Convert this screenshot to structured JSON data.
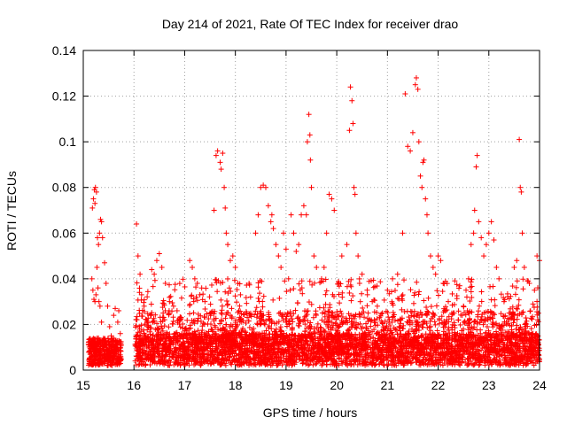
{
  "chart_data": {
    "type": "scatter",
    "title": "Day 214 of 2021, Rate Of TEC Index for receiver drao",
    "xlabel": "GPS time / hours",
    "ylabel": "ROTI / TECUs",
    "xlim": [
      15,
      24
    ],
    "ylim": [
      0,
      0.14
    ],
    "xticks": [
      "15",
      "16",
      "17",
      "18",
      "19",
      "20",
      "21",
      "22",
      "23",
      "24"
    ],
    "yticks": [
      "0",
      "0.02",
      "0.04",
      "0.06",
      "0.08",
      "0.1",
      "0.12",
      "0.14"
    ],
    "grid": true,
    "marker": "+",
    "color": "#ff0000",
    "series": [
      {
        "points": [
          [
            15.18,
            0.071
          ],
          [
            15.2,
            0.075
          ],
          [
            15.22,
            0.079
          ],
          [
            15.24,
            0.08
          ],
          [
            15.26,
            0.078
          ],
          [
            15.23,
            0.073
          ],
          [
            15.28,
            0.058
          ],
          [
            15.3,
            0.055
          ],
          [
            15.32,
            0.06
          ],
          [
            15.34,
            0.066
          ],
          [
            15.36,
            0.065
          ],
          [
            15.38,
            0.058
          ],
          [
            15.42,
            0.047
          ],
          [
            15.17,
            0.04
          ],
          [
            15.19,
            0.035
          ],
          [
            15.21,
            0.031
          ],
          [
            15.23,
            0.03
          ],
          [
            15.25,
            0.033
          ],
          [
            15.27,
            0.045
          ],
          [
            15.29,
            0.036
          ],
          [
            15.31,
            0.03
          ],
          [
            15.33,
            0.028
          ],
          [
            15.36,
            0.021
          ],
          [
            15.45,
            0.038
          ],
          [
            15.48,
            0.028
          ],
          [
            15.52,
            0.019
          ],
          [
            15.55,
            0.015
          ],
          [
            15.6,
            0.024
          ],
          [
            15.63,
            0.027
          ],
          [
            15.68,
            0.021
          ],
          [
            15.7,
            0.026
          ],
          [
            15.73,
            0.016
          ],
          [
            15.2,
            0.012
          ],
          [
            15.3,
            0.014
          ],
          [
            15.4,
            0.011
          ],
          [
            15.5,
            0.012
          ],
          [
            16.05,
            0.064
          ],
          [
            16.08,
            0.05
          ],
          [
            16.12,
            0.042
          ],
          [
            16.15,
            0.033
          ],
          [
            16.2,
            0.028
          ],
          [
            16.25,
            0.022
          ],
          [
            16.35,
            0.044
          ],
          [
            16.4,
            0.042
          ],
          [
            16.45,
            0.048
          ],
          [
            16.5,
            0.051
          ],
          [
            16.55,
            0.045
          ],
          [
            16.62,
            0.038
          ],
          [
            16.7,
            0.03
          ],
          [
            16.78,
            0.028
          ],
          [
            16.85,
            0.026
          ],
          [
            16.92,
            0.022
          ],
          [
            17.0,
            0.018
          ],
          [
            17.1,
            0.048
          ],
          [
            17.15,
            0.045
          ],
          [
            17.2,
            0.04
          ],
          [
            17.25,
            0.038
          ],
          [
            17.3,
            0.033
          ],
          [
            17.4,
            0.03
          ],
          [
            17.5,
            0.025
          ],
          [
            17.58,
            0.07
          ],
          [
            17.62,
            0.094
          ],
          [
            17.65,
            0.096
          ],
          [
            17.7,
            0.091
          ],
          [
            17.72,
            0.088
          ],
          [
            17.75,
            0.095
          ],
          [
            17.78,
            0.08
          ],
          [
            17.8,
            0.071
          ],
          [
            17.82,
            0.06
          ],
          [
            17.85,
            0.055
          ],
          [
            17.9,
            0.048
          ],
          [
            17.95,
            0.05
          ],
          [
            18.0,
            0.045
          ],
          [
            18.05,
            0.038
          ],
          [
            18.1,
            0.033
          ],
          [
            18.3,
            0.032
          ],
          [
            18.4,
            0.06
          ],
          [
            18.45,
            0.068
          ],
          [
            18.5,
            0.08
          ],
          [
            18.55,
            0.081
          ],
          [
            18.6,
            0.08
          ],
          [
            18.65,
            0.072
          ],
          [
            18.7,
            0.065
          ],
          [
            18.72,
            0.068
          ],
          [
            18.75,
            0.062
          ],
          [
            18.8,
            0.055
          ],
          [
            18.85,
            0.05
          ],
          [
            18.9,
            0.045
          ],
          [
            18.95,
            0.06
          ],
          [
            19.0,
            0.053
          ],
          [
            19.05,
            0.04
          ],
          [
            19.1,
            0.068
          ],
          [
            19.15,
            0.06
          ],
          [
            19.2,
            0.052
          ],
          [
            19.25,
            0.055
          ],
          [
            19.3,
            0.068
          ],
          [
            19.35,
            0.072
          ],
          [
            19.4,
            0.068
          ],
          [
            19.42,
            0.1
          ],
          [
            19.45,
            0.112
          ],
          [
            19.47,
            0.103
          ],
          [
            19.48,
            0.092
          ],
          [
            19.5,
            0.08
          ],
          [
            19.55,
            0.05
          ],
          [
            19.6,
            0.045
          ],
          [
            19.7,
            0.04
          ],
          [
            19.75,
            0.045
          ],
          [
            19.8,
            0.06
          ],
          [
            19.85,
            0.077
          ],
          [
            19.9,
            0.075
          ],
          [
            19.95,
            0.07
          ],
          [
            20.1,
            0.05
          ],
          [
            20.2,
            0.055
          ],
          [
            20.25,
            0.105
          ],
          [
            20.27,
            0.124
          ],
          [
            20.3,
            0.118
          ],
          [
            20.32,
            0.108
          ],
          [
            20.34,
            0.08
          ],
          [
            20.36,
            0.077
          ],
          [
            20.38,
            0.06
          ],
          [
            20.42,
            0.05
          ],
          [
            20.45,
            0.038
          ],
          [
            20.5,
            0.042
          ],
          [
            20.6,
            0.035
          ],
          [
            20.7,
            0.03
          ],
          [
            20.8,
            0.028
          ],
          [
            20.9,
            0.025
          ],
          [
            21.0,
            0.035
          ],
          [
            21.1,
            0.04
          ],
          [
            21.2,
            0.042
          ],
          [
            21.3,
            0.06
          ],
          [
            21.35,
            0.121
          ],
          [
            21.4,
            0.098
          ],
          [
            21.45,
            0.096
          ],
          [
            21.5,
            0.104
          ],
          [
            21.55,
            0.125
          ],
          [
            21.57,
            0.128
          ],
          [
            21.6,
            0.123
          ],
          [
            21.62,
            0.1
          ],
          [
            21.65,
            0.085
          ],
          [
            21.68,
            0.08
          ],
          [
            21.7,
            0.091
          ],
          [
            21.72,
            0.092
          ],
          [
            21.75,
            0.075
          ],
          [
            21.78,
            0.068
          ],
          [
            21.8,
            0.06
          ],
          [
            21.85,
            0.05
          ],
          [
            21.9,
            0.045
          ],
          [
            21.95,
            0.042
          ],
          [
            22.0,
            0.05
          ],
          [
            22.05,
            0.048
          ],
          [
            22.1,
            0.038
          ],
          [
            22.2,
            0.03
          ],
          [
            22.3,
            0.025
          ],
          [
            22.4,
            0.022
          ],
          [
            22.5,
            0.028
          ],
          [
            22.55,
            0.035
          ],
          [
            22.6,
            0.04
          ],
          [
            22.65,
            0.055
          ],
          [
            22.7,
            0.06
          ],
          [
            22.72,
            0.07
          ],
          [
            22.75,
            0.089
          ],
          [
            22.77,
            0.094
          ],
          [
            22.8,
            0.065
          ],
          [
            22.85,
            0.058
          ],
          [
            22.9,
            0.05
          ],
          [
            22.95,
            0.055
          ],
          [
            23.0,
            0.06
          ],
          [
            23.05,
            0.065
          ],
          [
            23.1,
            0.057
          ],
          [
            23.15,
            0.045
          ],
          [
            23.2,
            0.04
          ],
          [
            23.3,
            0.03
          ],
          [
            23.4,
            0.025
          ],
          [
            23.5,
            0.045
          ],
          [
            23.55,
            0.048
          ],
          [
            23.6,
            0.101
          ],
          [
            23.62,
            0.08
          ],
          [
            23.64,
            0.078
          ],
          [
            23.66,
            0.06
          ],
          [
            23.7,
            0.045
          ],
          [
            23.8,
            0.038
          ],
          [
            23.9,
            0.035
          ],
          [
            23.95,
            0.05
          ],
          [
            24.0,
            0.048
          ]
        ]
      }
    ]
  }
}
